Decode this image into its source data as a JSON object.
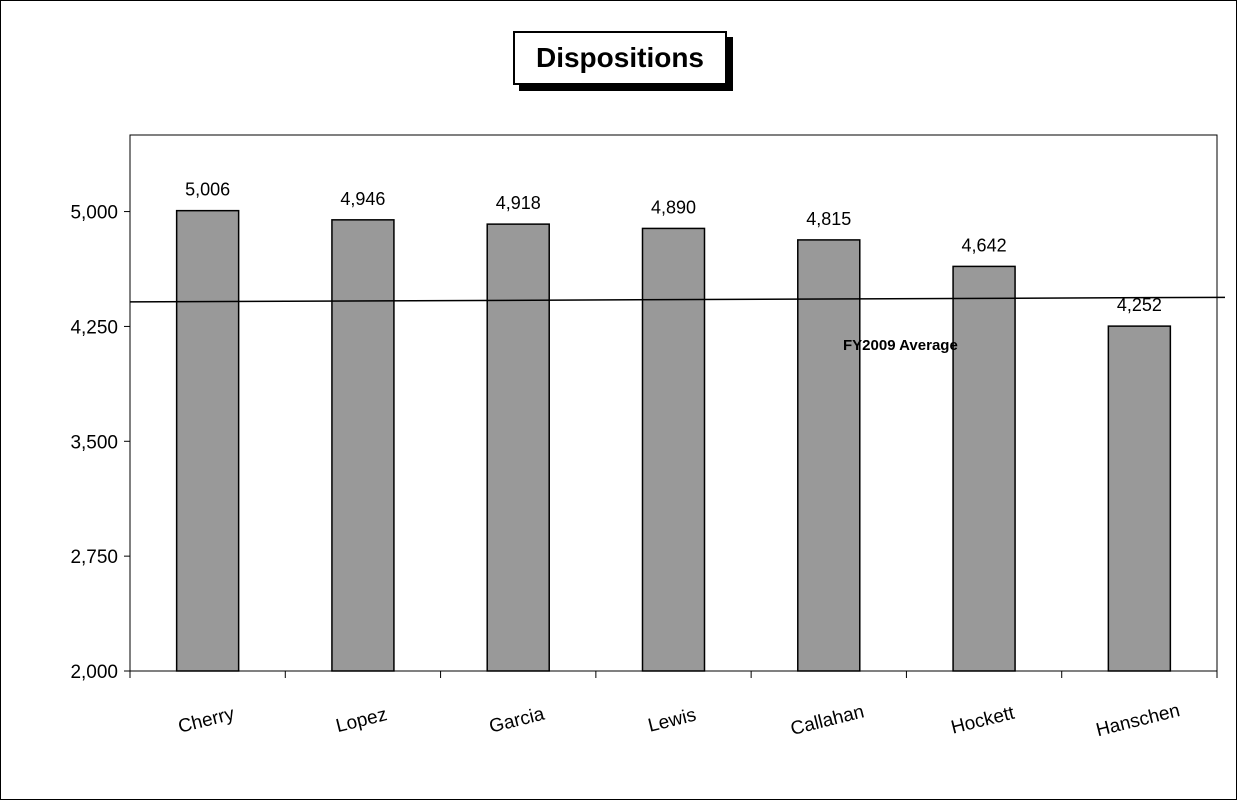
{
  "chart_data": {
    "type": "bar",
    "title": "Dispositions",
    "xlabel": "",
    "ylabel": "",
    "categories": [
      "Cherry",
      "Lopez",
      "Garcia",
      "Lewis",
      "Callahan",
      "Hockett",
      "Hanschen"
    ],
    "values": [
      5006,
      4946,
      4918,
      4890,
      4815,
      4642,
      4252
    ],
    "data_labels": [
      "5,006",
      "4,946",
      "4,918",
      "4,890",
      "4,815",
      "4,642",
      "4,252"
    ],
    "ylim": [
      2000,
      5500
    ],
    "yticks": [
      2000,
      2750,
      3500,
      4250,
      5000
    ],
    "ytick_labels": [
      "2,000",
      "2,750",
      "3,500",
      "4,250",
      "5,000"
    ],
    "reference_line": {
      "label": "FY2009 Average",
      "value_start": 4410,
      "value_end": 4440
    },
    "bar_color": "#999999",
    "grid": false,
    "legend": "none"
  }
}
